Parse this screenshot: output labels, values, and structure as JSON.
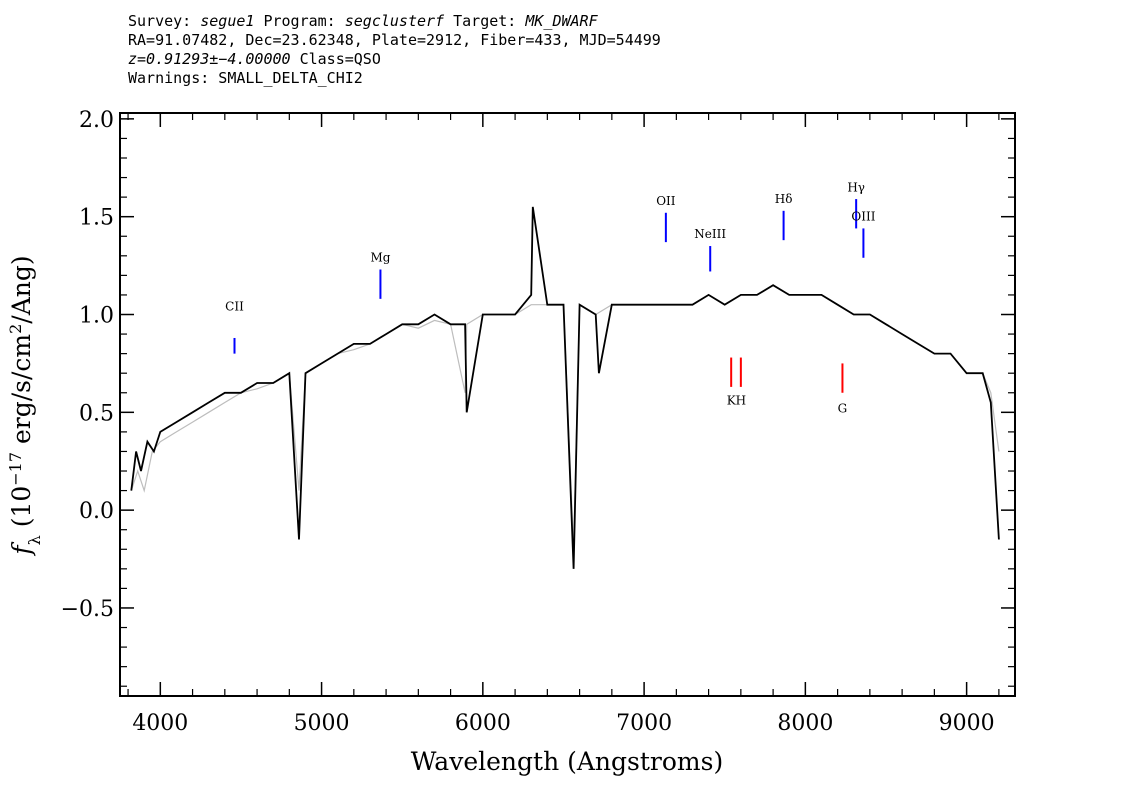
{
  "header": {
    "line1": {
      "survey_label": "Survey: ",
      "survey": "segue1",
      "program_label": " Program: ",
      "program": "segclusterf",
      "target_label": " Target: ",
      "target": "MK_DWARF"
    },
    "line2": "RA=91.07482, Dec=23.62348, Plate=2912, Fiber=433, MJD=54499",
    "line3": {
      "z": "z=0.91293±−4.00000",
      "class": " Class=QSO"
    },
    "line4": "Warnings: SMALL_DELTA_CHI2"
  },
  "chart_data": {
    "type": "line",
    "xlabel": "Wavelength (Angstroms)",
    "ylabel_prefix": "f",
    "ylabel_sub": "λ",
    "ylabel_units": " (10",
    "ylabel_exp": "−17",
    "ylabel_tail": " erg/s/cm",
    "ylabel_exp2": "2",
    "ylabel_end": "/Ang)",
    "xlim": [
      3750,
      9300
    ],
    "ylim": [
      -0.95,
      2.03
    ],
    "xticks": [
      4000,
      5000,
      6000,
      7000,
      8000,
      9000
    ],
    "xtick_labels": [
      "4000",
      "5000",
      "6000",
      "7000",
      "8000",
      "9000"
    ],
    "yticks": [
      -0.5,
      0.0,
      0.5,
      1.0,
      1.5,
      2.0
    ],
    "ytick_labels": [
      "−0.5",
      "0.0",
      "0.5",
      "1.0",
      "1.5",
      "2.0"
    ],
    "series": [
      {
        "color": "#bdbdbd",
        "x": [
          3820,
          3860,
          3900,
          3950,
          4000,
          4100,
          4200,
          4300,
          4400,
          4500,
          4600,
          4700,
          4800,
          4860,
          4900,
          5000,
          5100,
          5200,
          5300,
          5400,
          5500,
          5600,
          5700,
          5800,
          5890,
          5900,
          6000,
          6100,
          6200,
          6300,
          6400,
          6500,
          6563,
          6600,
          6700,
          6800,
          6900,
          7000,
          7100,
          7200,
          7300,
          7400,
          7500,
          7600,
          7700,
          7800,
          7900,
          8000,
          8100,
          8200,
          8300,
          8400,
          8500,
          8600,
          8700,
          8800,
          8900,
          9000,
          9100,
          9150,
          9200
        ],
        "y": [
          0.1,
          0.2,
          0.1,
          0.3,
          0.35,
          0.4,
          0.45,
          0.5,
          0.55,
          0.6,
          0.62,
          0.65,
          0.7,
          0.1,
          0.7,
          0.75,
          0.8,
          0.82,
          0.85,
          0.9,
          0.95,
          0.93,
          0.97,
          0.95,
          0.6,
          0.95,
          1.0,
          1.0,
          1.0,
          1.05,
          1.05,
          1.05,
          -0.2,
          1.05,
          1.0,
          1.05,
          1.05,
          1.05,
          1.05,
          1.05,
          1.05,
          1.1,
          1.05,
          1.1,
          1.1,
          1.15,
          1.1,
          1.1,
          1.1,
          1.05,
          1.0,
          1.0,
          0.95,
          0.9,
          0.85,
          0.8,
          0.8,
          0.7,
          0.7,
          0.6,
          0.3
        ]
      },
      {
        "color": "#000000",
        "x": [
          3820,
          3850,
          3880,
          3920,
          3960,
          4000,
          4100,
          4200,
          4300,
          4400,
          4500,
          4600,
          4700,
          4800,
          4860,
          4900,
          5000,
          5100,
          5200,
          5300,
          5400,
          5500,
          5600,
          5700,
          5800,
          5890,
          5900,
          6000,
          6100,
          6200,
          6300,
          6310,
          6400,
          6500,
          6563,
          6600,
          6700,
          6720,
          6800,
          6900,
          7000,
          7100,
          7200,
          7300,
          7400,
          7500,
          7600,
          7700,
          7800,
          7900,
          8000,
          8100,
          8200,
          8300,
          8400,
          8500,
          8600,
          8700,
          8800,
          8900,
          9000,
          9100,
          9150,
          9200
        ],
        "y": [
          0.1,
          0.3,
          0.2,
          0.35,
          0.3,
          0.4,
          0.45,
          0.5,
          0.55,
          0.6,
          0.6,
          0.65,
          0.65,
          0.7,
          -0.15,
          0.7,
          0.75,
          0.8,
          0.85,
          0.85,
          0.9,
          0.95,
          0.95,
          1.0,
          0.95,
          0.95,
          0.5,
          1.0,
          1.0,
          1.0,
          1.1,
          1.55,
          1.05,
          1.05,
          -0.3,
          1.05,
          1.0,
          0.7,
          1.05,
          1.05,
          1.05,
          1.05,
          1.05,
          1.05,
          1.1,
          1.05,
          1.1,
          1.1,
          1.15,
          1.1,
          1.1,
          1.1,
          1.05,
          1.0,
          1.0,
          0.95,
          0.9,
          0.85,
          0.8,
          0.8,
          0.7,
          0.7,
          0.55,
          -0.15
        ]
      }
    ],
    "emission_lines": [
      {
        "label": "CII",
        "x": 4460,
        "y_top": 0.88,
        "y_bot": 0.8,
        "label_y": 1.02,
        "color": "#0000ff"
      },
      {
        "label": "Mg",
        "x": 5365,
        "y_top": 1.23,
        "y_bot": 1.08,
        "label_y": 1.27,
        "color": "#0000ff"
      },
      {
        "label": "OII",
        "x": 7135,
        "y_top": 1.52,
        "y_bot": 1.37,
        "label_y": 1.56,
        "color": "#0000ff"
      },
      {
        "label": "NeIII",
        "x": 7410,
        "y_top": 1.35,
        "y_bot": 1.22,
        "label_y": 1.39,
        "color": "#0000ff"
      },
      {
        "label": "Hδ",
        "x": 7865,
        "y_top": 1.53,
        "y_bot": 1.38,
        "label_y": 1.57,
        "color": "#0000ff"
      },
      {
        "label": "Hγ",
        "x": 8315,
        "y_top": 1.59,
        "y_bot": 1.44,
        "label_y": 1.63,
        "color": "#0000ff"
      },
      {
        "label": "OIII",
        "x": 8360,
        "y_top": 1.44,
        "y_bot": 1.29,
        "label_y": 1.48,
        "color": "#0000ff"
      }
    ],
    "absorption_lines": [
      {
        "label": "K",
        "x": 7540,
        "y_top": 0.78,
        "y_bot": 0.63,
        "label_y": 0.54,
        "color": "#ff0000"
      },
      {
        "label": "H",
        "x": 7600,
        "y_top": 0.78,
        "y_bot": 0.63,
        "label_y": 0.54,
        "color": "#ff0000"
      },
      {
        "label": "G",
        "x": 8230,
        "y_top": 0.75,
        "y_bot": 0.6,
        "label_y": 0.5,
        "color": "#ff0000"
      }
    ]
  }
}
